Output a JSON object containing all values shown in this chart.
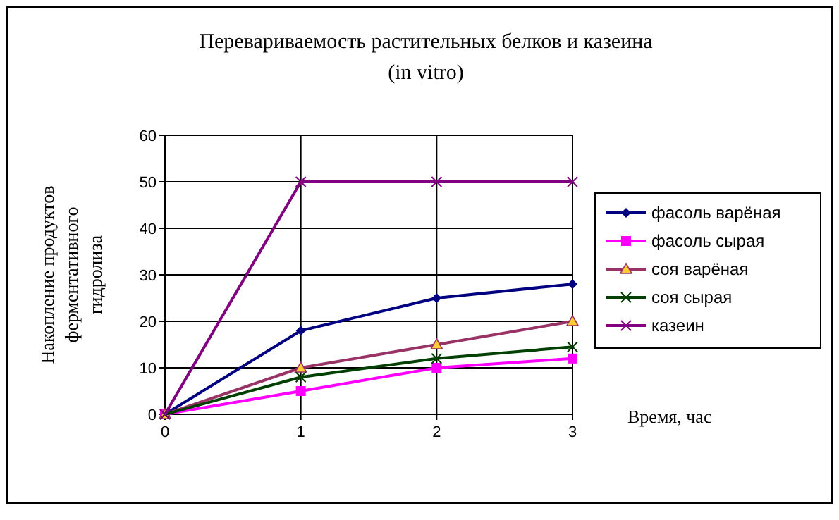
{
  "chart_data": {
    "type": "line",
    "title": "Перевариваемость растительных белков и казеина\n(in vitro)",
    "ylabel": "Накопление продуктов ферментативного гидролиза",
    "xlabel": "Время, час",
    "x": [
      0,
      1,
      2,
      3
    ],
    "xlim": [
      0,
      3
    ],
    "xticks": [
      0,
      1,
      2,
      3
    ],
    "ylim": [
      0,
      60
    ],
    "yticks": [
      0,
      10,
      20,
      30,
      40,
      50,
      60
    ],
    "grid": true,
    "legend": "right",
    "line_style": "solid",
    "series": [
      {
        "name": "фасоль варёная",
        "color": "#000080",
        "marker": "diamond",
        "values": [
          0,
          18,
          25,
          28
        ]
      },
      {
        "name": "фасоль сырая",
        "color": "#ff00ff",
        "marker": "square",
        "values": [
          0,
          5,
          10,
          12
        ]
      },
      {
        "name": "соя варёная",
        "color": "#993366",
        "marker": "triangle",
        "values": [
          0,
          10,
          15,
          20
        ]
      },
      {
        "name": "соя сырая",
        "color": "#004000",
        "marker": "cross",
        "values": [
          0,
          8,
          12,
          14.5
        ]
      },
      {
        "name": "казеин",
        "color": "#800080",
        "marker": "cross",
        "values": [
          0,
          50,
          50,
          50
        ]
      }
    ]
  }
}
